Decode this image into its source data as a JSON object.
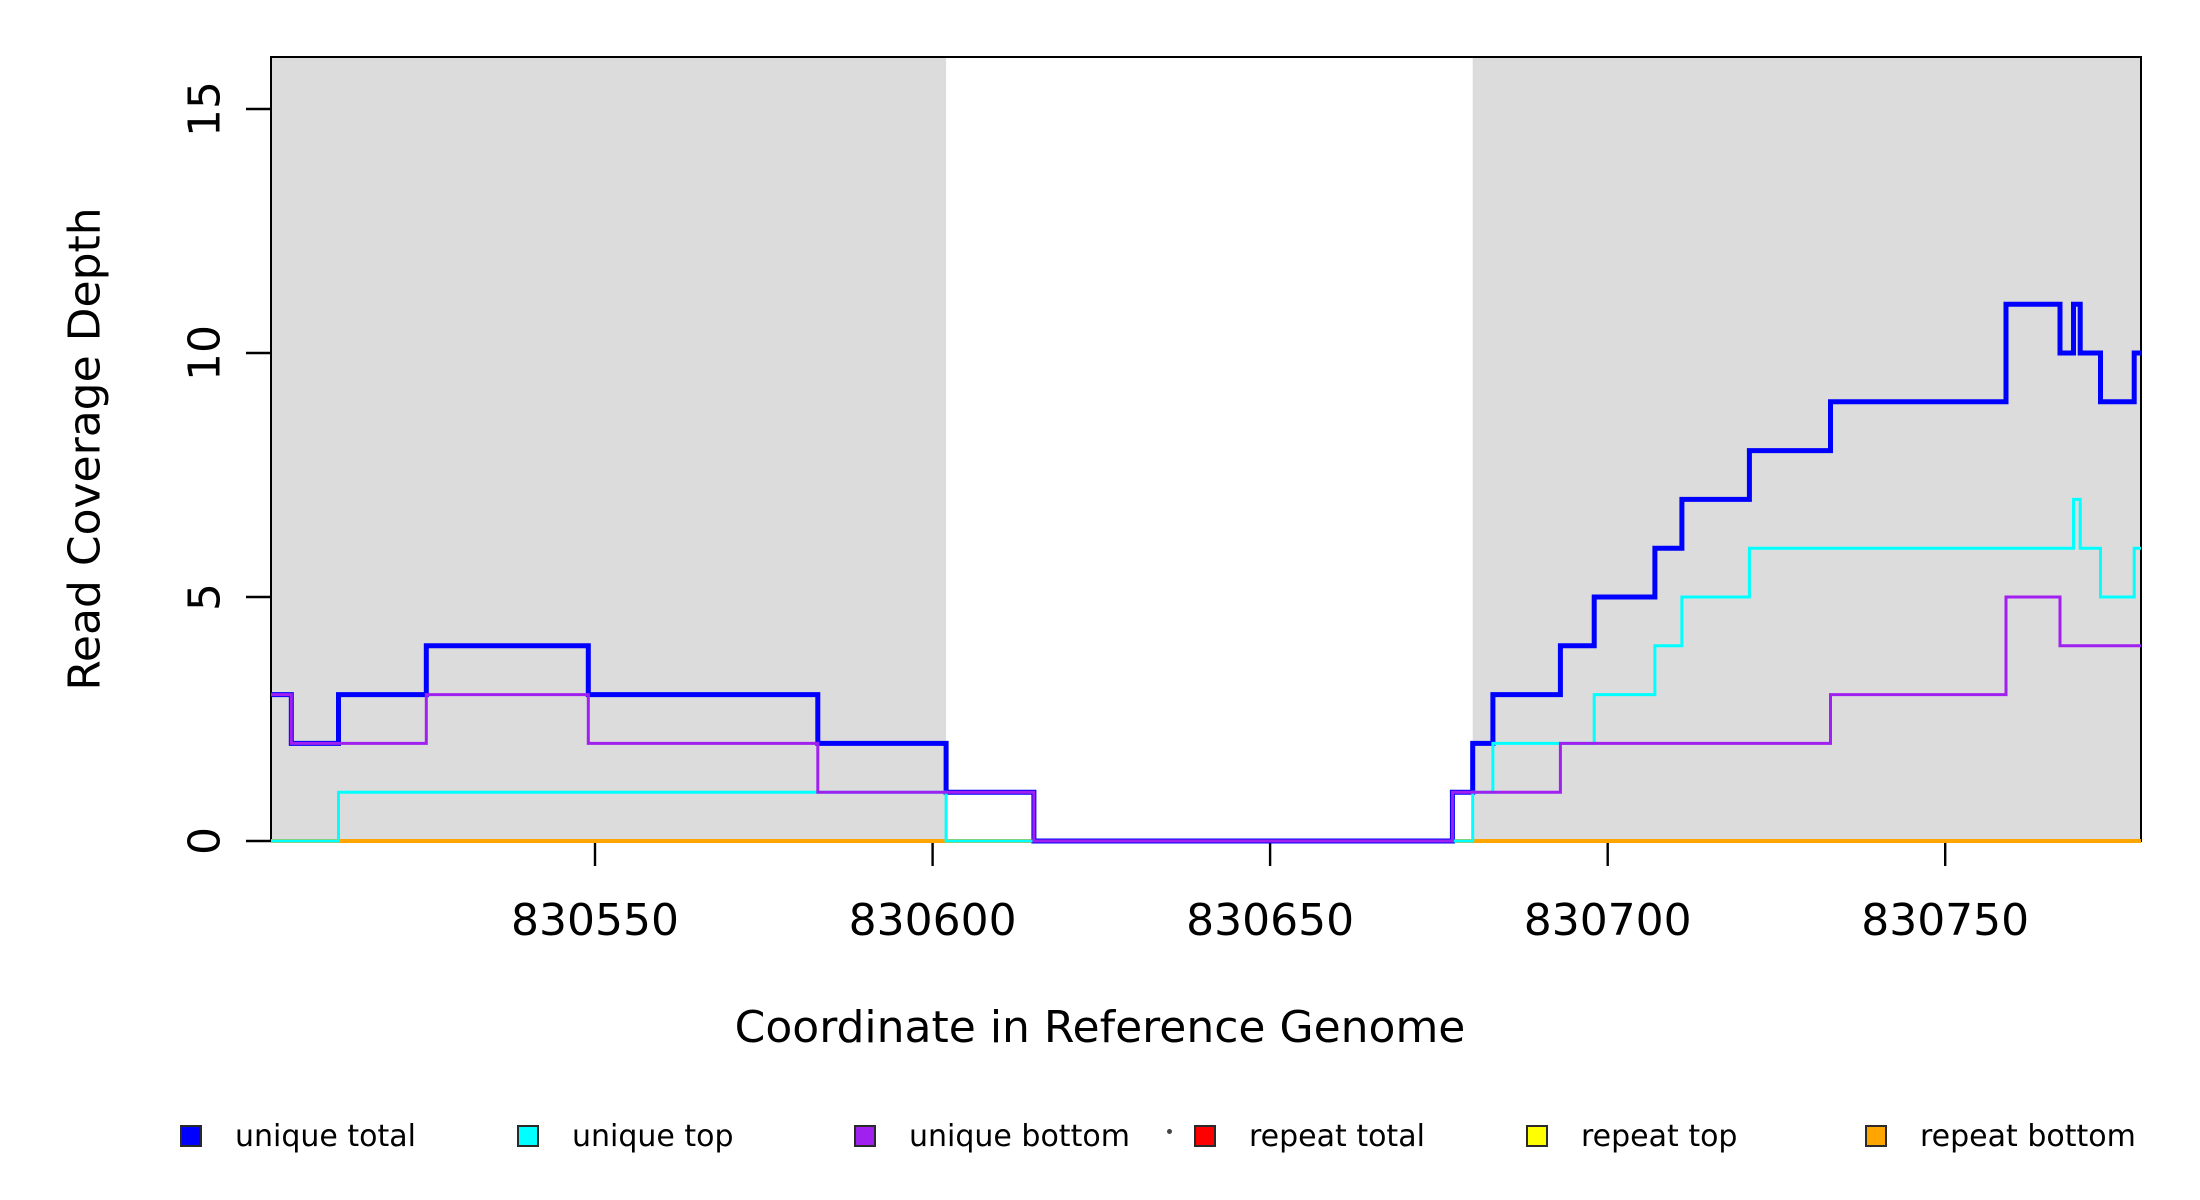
{
  "chart_data": {
    "type": "line",
    "step": true,
    "title": "",
    "xlabel": "Coordinate in Reference Genome",
    "ylabel": "Read Coverage Depth",
    "xlim": [
      830502,
      830779
    ],
    "ylim": [
      0,
      16
    ],
    "grid": false,
    "x_ticks": [
      830550,
      830600,
      830650,
      830700,
      830750
    ],
    "y_ticks": [
      0,
      5,
      10,
      15
    ],
    "shade_color": "#DCDCDC",
    "shaded_regions": [
      {
        "from": 830502,
        "to": 830602
      },
      {
        "from": 830680,
        "to": 830779
      }
    ],
    "series": [
      {
        "name": "repeat total",
        "color": "#FF0000",
        "width": 3,
        "points": [
          [
            830502,
            0
          ]
        ]
      },
      {
        "name": "repeat top",
        "color": "#FFFF00",
        "width": 3,
        "points": [
          [
            830502,
            0
          ]
        ]
      },
      {
        "name": "repeat bottom",
        "color": "#FFA500",
        "width": 4,
        "points": [
          [
            830502,
            0
          ]
        ]
      },
      {
        "name": "unique total",
        "color": "#0000FF",
        "width": 5,
        "points": [
          [
            830502,
            3
          ],
          [
            830505,
            2
          ],
          [
            830512,
            3
          ],
          [
            830525,
            4
          ],
          [
            830549,
            3
          ],
          [
            830583,
            2
          ],
          [
            830602,
            1
          ],
          [
            830615,
            0
          ],
          [
            830677,
            1
          ],
          [
            830680,
            2
          ],
          [
            830683,
            3
          ],
          [
            830693,
            4
          ],
          [
            830698,
            5
          ],
          [
            830707,
            6
          ],
          [
            830711,
            7
          ],
          [
            830721,
            8
          ],
          [
            830733,
            9
          ],
          [
            830759,
            11
          ],
          [
            830767,
            10
          ],
          [
            830769,
            11
          ],
          [
            830770,
            10
          ],
          [
            830773,
            9
          ],
          [
            830778,
            10
          ]
        ]
      },
      {
        "name": "unique top",
        "color": "#00FFFF",
        "width": 3,
        "points": [
          [
            830502,
            0
          ],
          [
            830512,
            1
          ],
          [
            830602,
            0
          ],
          [
            830680,
            1
          ],
          [
            830683,
            2
          ],
          [
            830698,
            3
          ],
          [
            830707,
            4
          ],
          [
            830711,
            5
          ],
          [
            830721,
            6
          ],
          [
            830769,
            7
          ],
          [
            830770,
            6
          ],
          [
            830773,
            5
          ],
          [
            830778,
            6
          ]
        ]
      },
      {
        "name": "unique bottom",
        "color": "#A020F0",
        "width": 3,
        "points": [
          [
            830502,
            3
          ],
          [
            830505,
            2
          ],
          [
            830525,
            3
          ],
          [
            830549,
            2
          ],
          [
            830583,
            1
          ],
          [
            830615,
            0
          ],
          [
            830677,
            1
          ],
          [
            830693,
            2
          ],
          [
            830733,
            3
          ],
          [
            830759,
            5
          ],
          [
            830767,
            4
          ]
        ]
      }
    ],
    "legend": {
      "position": "bottom",
      "entries": [
        {
          "label": "unique total",
          "color": "#0000FF"
        },
        {
          "label": "unique top",
          "color": "#00FFFF"
        },
        {
          "label": "unique bottom",
          "color": "#A020F0"
        },
        {
          "label": "repeat total",
          "color": "#FF0000"
        },
        {
          "label": "repeat top",
          "color": "#FFFF00"
        },
        {
          "label": "repeat bottom",
          "color": "#FFA500"
        }
      ]
    }
  }
}
